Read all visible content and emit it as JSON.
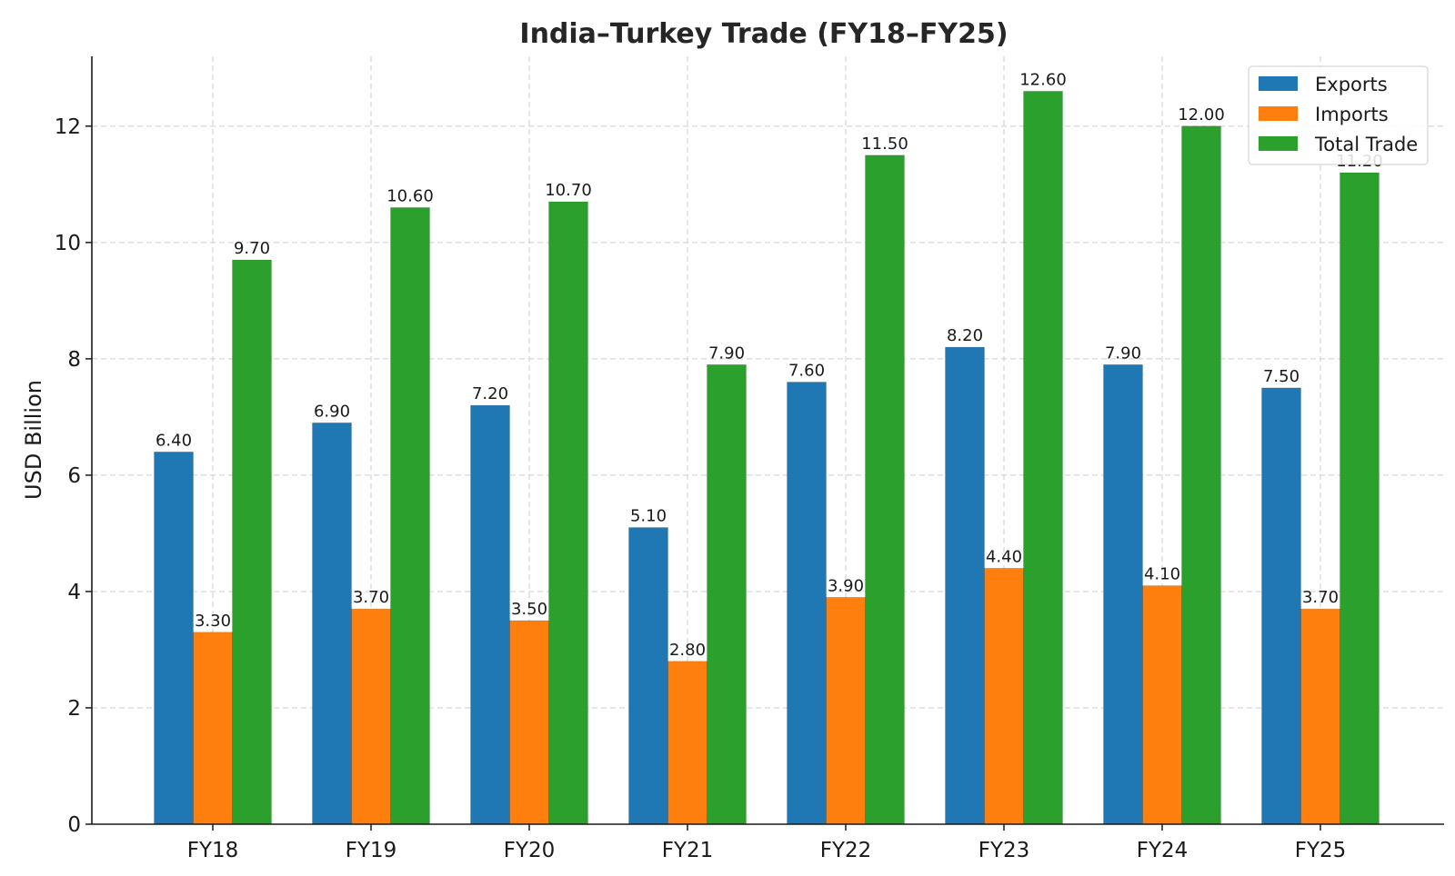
{
  "chart_data": {
    "type": "bar",
    "title": "India–Turkey Trade (FY18–FY25)",
    "xlabel": "",
    "ylabel": "USD Billion",
    "ylim": [
      0,
      13.2
    ],
    "yticks": [
      0,
      2,
      4,
      6,
      8,
      10,
      12
    ],
    "grid": true,
    "legend_position": "top-right",
    "categories": [
      "FY18",
      "FY19",
      "FY20",
      "FY21",
      "FY22",
      "FY23",
      "FY24",
      "FY25"
    ],
    "series": [
      {
        "name": "Exports",
        "color": "#1f77b4",
        "values": [
          6.4,
          6.9,
          7.2,
          5.1,
          7.6,
          8.2,
          7.9,
          7.5
        ]
      },
      {
        "name": "Imports",
        "color": "#ff7f0e",
        "values": [
          3.3,
          3.7,
          3.5,
          2.8,
          3.9,
          4.4,
          4.1,
          3.7
        ]
      },
      {
        "name": "Total Trade",
        "color": "#2ca02c",
        "values": [
          9.7,
          10.6,
          10.7,
          7.9,
          11.5,
          12.6,
          12.0,
          11.2
        ]
      }
    ]
  }
}
